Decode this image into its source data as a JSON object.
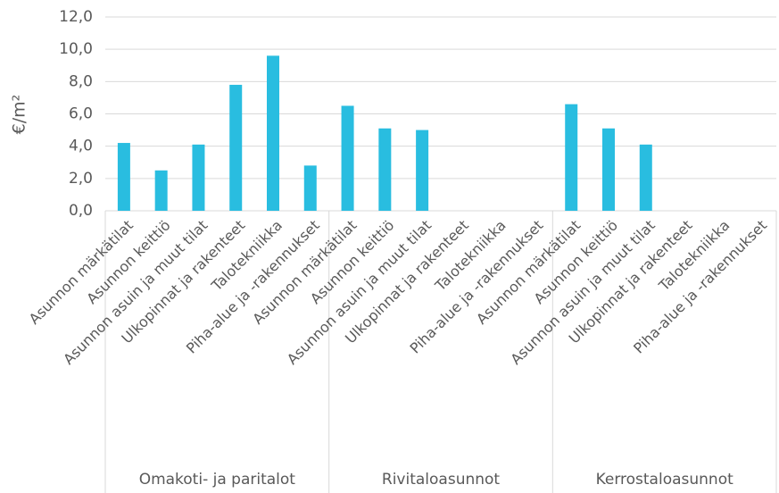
{
  "chart_data": {
    "type": "bar",
    "y_label": "€/m²",
    "categories": [
      "Asunnon märkätilat",
      "Asunnon keittiö",
      "Asunnon asuin ja muut tilat",
      "Ulkopinnat ja rakenteet",
      "Talotekniikka",
      "Piha-alue ja -rakennukset",
      "Asunnon märkätilat",
      "Asunnon keittiö",
      "Asunnon asuin ja muut tilat",
      "Ulkopinnat ja rakenteet",
      "Talotekniikka",
      "Piha-alue ja -rakennukset",
      "Asunnon märkätilat",
      "Asunnon keittiö",
      "Asunnon asuin ja muut tilat",
      "Ulkopinnat ja rakenteet",
      "Talotekniikka",
      "Piha-alue ja -rakennukset"
    ],
    "groups": [
      "Omakoti- ja paritalot",
      "Rivitaloasunnot",
      "Kerrostaloasunnot"
    ],
    "values": [
      4.2,
      2.5,
      4.1,
      7.8,
      9.6,
      2.8,
      6.5,
      5.1,
      5.0,
      null,
      null,
      null,
      6.6,
      5.1,
      4.1,
      null,
      null,
      null
    ],
    "color": "#29bde0",
    "ylim": [
      0,
      12
    ],
    "yticks": [
      {
        "value": 0,
        "label": "0,0"
      },
      {
        "value": 2,
        "label": "2,0"
      },
      {
        "value": 4,
        "label": "4,0"
      },
      {
        "value": 6,
        "label": "6,0"
      },
      {
        "value": 8,
        "label": "8,0"
      },
      {
        "value": 10,
        "label": "10,0"
      },
      {
        "value": 12,
        "label": "12,0"
      }
    ],
    "grid": true
  }
}
